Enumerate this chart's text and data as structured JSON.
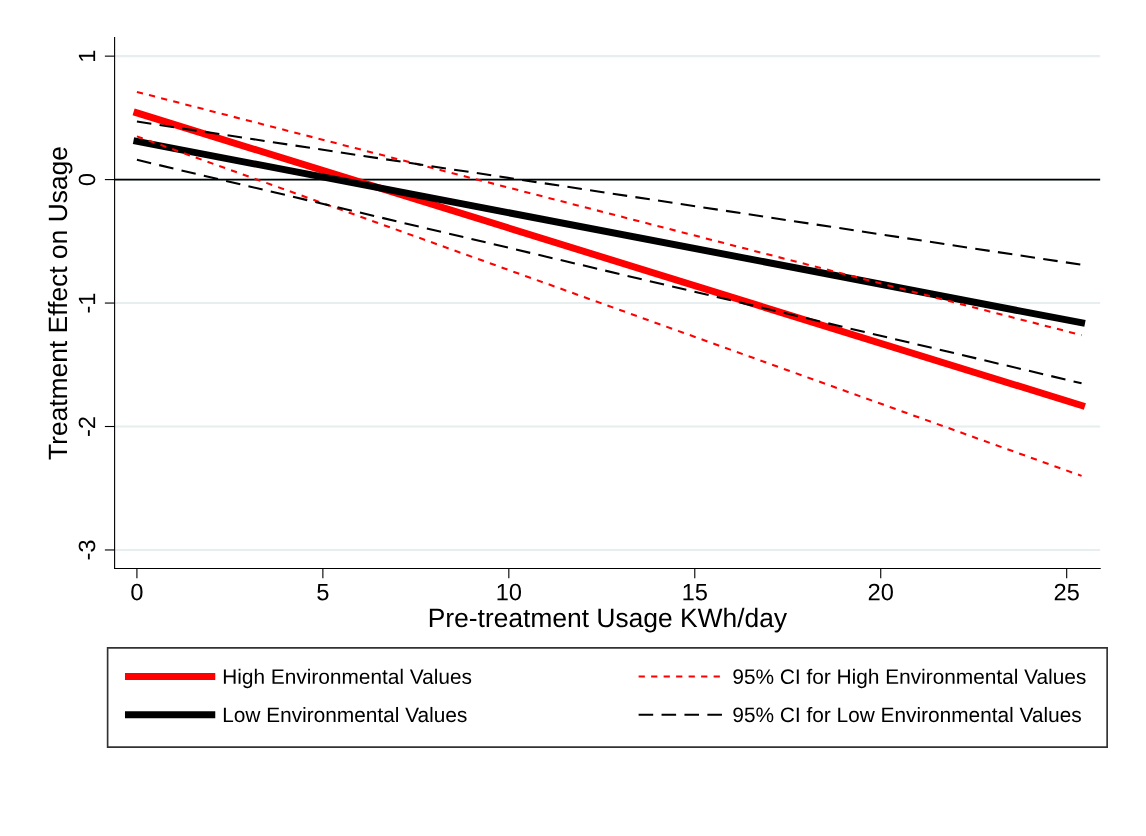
{
  "chart_data": {
    "type": "line",
    "xlabel": "Pre-treatment Usage KWh/day",
    "ylabel": "Treatment Effect on Usage",
    "xlim": [
      -0.6,
      25.9
    ],
    "ylim": [
      -3.15,
      1.15
    ],
    "xticks": [
      0,
      5,
      10,
      15,
      20,
      25
    ],
    "yticks": [
      -3,
      -2,
      -1,
      0,
      1
    ],
    "grid": "y",
    "legend": "bottom",
    "marker": "none",
    "x": [
      0,
      25.4
    ],
    "ref_lines": [
      {
        "axis": "y",
        "value": 0,
        "color": "#000000",
        "line_style": "solid"
      }
    ],
    "series": [
      {
        "name": "High Environmental Values",
        "color": "#ff0000",
        "line_style": "solid",
        "values": [
          0.54,
          -1.83
        ]
      },
      {
        "name": "Low Environmental Values",
        "color": "#000000",
        "line_style": "solid",
        "values": [
          0.31,
          -1.16
        ]
      },
      {
        "name": "95% CI for High Environmental Values",
        "color": "#ff0000",
        "line_style": "dotted",
        "values": [
          0.71,
          -1.26
        ]
      },
      {
        "color": "#ff0000",
        "line_style": "dotted",
        "values": [
          0.35,
          -2.4
        ]
      },
      {
        "name": "95% CI for Low Environmental Values",
        "color": "#000000",
        "line_style": "dashed",
        "values": [
          0.47,
          -0.69
        ]
      },
      {
        "color": "#000000",
        "line_style": "dashed",
        "values": [
          0.16,
          -1.65
        ]
      }
    ]
  }
}
